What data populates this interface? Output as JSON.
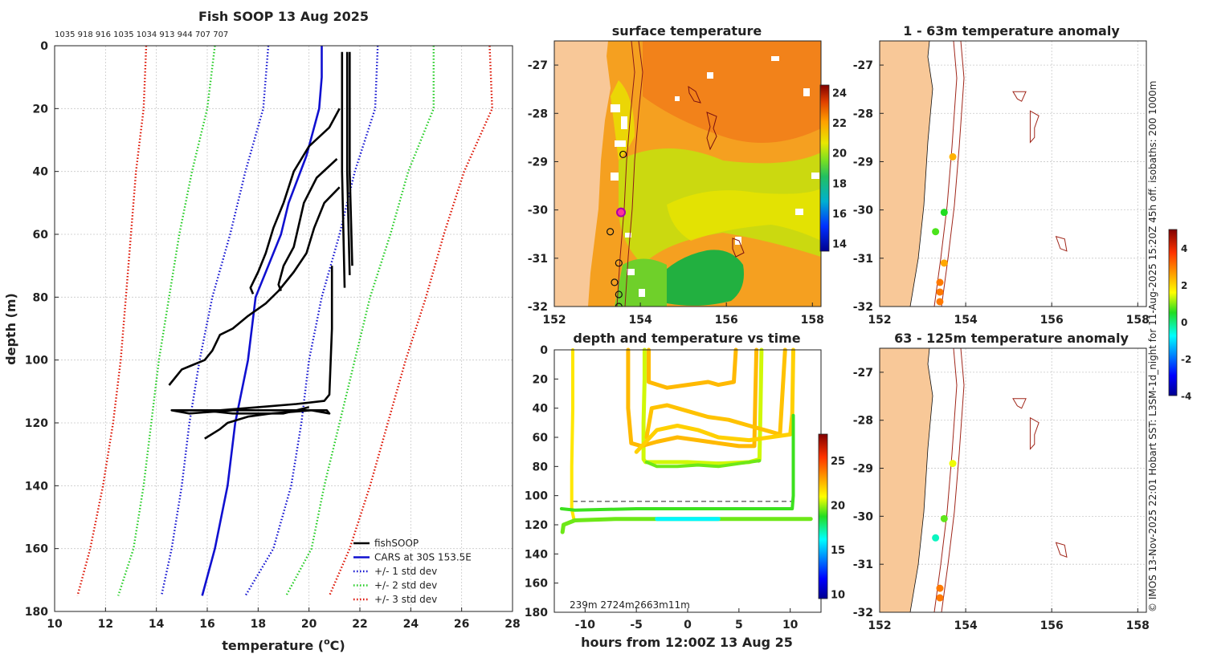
{
  "chart_data": [
    {
      "type": "line",
      "title": "Fish SOOP 13 Aug 2025",
      "top_annotation": "1035 918 916 1035 1034 913 944 707 707",
      "xlabel": "temperature (",
      "xlabel_sup": "o",
      "xlabel_unit": "C)",
      "ylabel": "depth (m)",
      "xlim": [
        10,
        28
      ],
      "ylim": [
        180,
        0
      ],
      "xticks": [
        10,
        12,
        14,
        16,
        18,
        20,
        22,
        24,
        26,
        28
      ],
      "yticks": [
        0,
        20,
        40,
        60,
        80,
        100,
        120,
        140,
        160,
        180
      ],
      "legend": [
        {
          "label": "fishSOOP",
          "color": "#000000",
          "style": "solid"
        },
        {
          "label": "CARS at 30S 153.5E",
          "color": "#1010d0",
          "style": "solid"
        },
        {
          "label": "+/- 1 std dev",
          "color": "#1010d0",
          "style": "dotted"
        },
        {
          "label": "+/- 2 std dev",
          "color": "#22cc22",
          "style": "dotted"
        },
        {
          "label": "+/- 3 std dev",
          "color": "#dd1100",
          "style": "dotted"
        }
      ],
      "series": [
        {
          "name": "CARS",
          "color": "#1010d0",
          "style": "solid",
          "points": [
            [
              20.5,
              0
            ],
            [
              20.5,
              10
            ],
            [
              20.4,
              20
            ],
            [
              19.9,
              35
            ],
            [
              19.2,
              50
            ],
            [
              18.9,
              60
            ],
            [
              18.4,
              70
            ],
            [
              17.9,
              80
            ],
            [
              17.6,
              100
            ],
            [
              17.1,
              120
            ],
            [
              16.8,
              140
            ],
            [
              16.3,
              160
            ],
            [
              15.8,
              175
            ]
          ]
        },
        {
          "name": "-1 std",
          "color": "#1010d0",
          "style": "dotted",
          "points": [
            [
              18.4,
              0
            ],
            [
              18.2,
              20
            ],
            [
              17.5,
              40
            ],
            [
              16.9,
              60
            ],
            [
              16.2,
              80
            ],
            [
              15.7,
              100
            ],
            [
              15.5,
              110
            ],
            [
              15.3,
              120
            ],
            [
              15.0,
              140
            ],
            [
              14.6,
              160
            ],
            [
              14.2,
              175
            ]
          ]
        },
        {
          "name": "+1 std",
          "color": "#1010d0",
          "style": "dotted",
          "points": [
            [
              22.7,
              0
            ],
            [
              22.6,
              20
            ],
            [
              21.8,
              40
            ],
            [
              21.2,
              60
            ],
            [
              20.5,
              80
            ],
            [
              20.0,
              100
            ],
            [
              19.7,
              120
            ],
            [
              19.3,
              140
            ],
            [
              18.6,
              160
            ],
            [
              17.5,
              175
            ]
          ]
        },
        {
          "name": "-2 std",
          "color": "#22cc22",
          "style": "dotted",
          "points": [
            [
              16.3,
              0
            ],
            [
              16.0,
              20
            ],
            [
              15.4,
              40
            ],
            [
              14.9,
              60
            ],
            [
              14.5,
              80
            ],
            [
              14.1,
              100
            ],
            [
              13.8,
              120
            ],
            [
              13.5,
              140
            ],
            [
              13.1,
              160
            ],
            [
              12.5,
              175
            ]
          ]
        },
        {
          "name": "+2 std",
          "color": "#22cc22",
          "style": "dotted",
          "points": [
            [
              24.9,
              0
            ],
            [
              24.9,
              20
            ],
            [
              23.9,
              40
            ],
            [
              23.2,
              60
            ],
            [
              22.4,
              80
            ],
            [
              21.8,
              100
            ],
            [
              21.2,
              120
            ],
            [
              20.6,
              140
            ],
            [
              20.1,
              160
            ],
            [
              19.1,
              175
            ]
          ]
        },
        {
          "name": "-3 std",
          "color": "#dd1100",
          "style": "dotted",
          "points": [
            [
              13.6,
              0
            ],
            [
              13.5,
              20
            ],
            [
              13.2,
              40
            ],
            [
              13.0,
              60
            ],
            [
              12.8,
              80
            ],
            [
              12.6,
              100
            ],
            [
              12.3,
              120
            ],
            [
              11.9,
              140
            ],
            [
              11.4,
              160
            ],
            [
              10.9,
              175
            ]
          ]
        },
        {
          "name": "+3 std",
          "color": "#dd1100",
          "style": "dotted",
          "points": [
            [
              27.1,
              0
            ],
            [
              27.2,
              20
            ],
            [
              26.1,
              40
            ],
            [
              25.3,
              60
            ],
            [
              24.6,
              80
            ],
            [
              23.8,
              100
            ],
            [
              23.1,
              120
            ],
            [
              22.4,
              140
            ],
            [
              21.6,
              160
            ],
            [
              20.8,
              175
            ]
          ]
        },
        {
          "name": "fishSOOP-1",
          "color": "#000000",
          "style": "solid",
          "points": [
            [
              21.3,
              2
            ],
            [
              21.3,
              40
            ],
            [
              21.4,
              77
            ]
          ]
        },
        {
          "name": "fishSOOP-2",
          "color": "#000000",
          "style": "solid",
          "points": [
            [
              21.5,
              2
            ],
            [
              21.5,
              40
            ],
            [
              21.6,
              73
            ]
          ]
        },
        {
          "name": "fishSOOP-3",
          "color": "#000000",
          "style": "solid",
          "points": [
            [
              21.6,
              2
            ],
            [
              21.6,
              40
            ],
            [
              21.7,
              70
            ]
          ]
        },
        {
          "name": "fishSOOP-4",
          "color": "#000000",
          "style": "solid",
          "points": [
            [
              21.2,
              20
            ],
            [
              20.8,
              26
            ],
            [
              20.0,
              32
            ],
            [
              19.4,
              40
            ],
            [
              19.0,
              50
            ],
            [
              18.6,
              58
            ],
            [
              18.3,
              66
            ],
            [
              18.0,
              72
            ],
            [
              17.7,
              77
            ],
            [
              17.8,
              79
            ]
          ]
        },
        {
          "name": "fishSOOP-5",
          "color": "#000000",
          "style": "solid",
          "points": [
            [
              21.1,
              36
            ],
            [
              20.3,
              42
            ],
            [
              19.8,
              50
            ],
            [
              19.6,
              57
            ],
            [
              19.4,
              64
            ],
            [
              19.0,
              70
            ],
            [
              18.8,
              76
            ],
            [
              18.9,
              78
            ]
          ]
        },
        {
          "name": "fishSOOP-6",
          "color": "#000000",
          "style": "solid",
          "points": [
            [
              21.2,
              45
            ],
            [
              20.6,
              50
            ],
            [
              20.2,
              58
            ],
            [
              19.9,
              66
            ],
            [
              19.4,
              72
            ],
            [
              18.8,
              78
            ],
            [
              18.3,
              82
            ],
            [
              17.6,
              86
            ],
            [
              17.0,
              90
            ],
            [
              16.5,
              92
            ],
            [
              16.2,
              97
            ],
            [
              15.9,
              100
            ],
            [
              15.3,
              102
            ],
            [
              15.0,
              103
            ],
            [
              14.5,
              108
            ]
          ]
        },
        {
          "name": "fishSOOP-7",
          "color": "#000000",
          "style": "solid",
          "points": [
            [
              20.9,
              70
            ],
            [
              20.9,
              90
            ],
            [
              20.8,
              111
            ],
            [
              20.6,
              113
            ],
            [
              19.5,
              114
            ],
            [
              18.0,
              115
            ],
            [
              16.5,
              116
            ],
            [
              15.5,
              116
            ],
            [
              14.6,
              116
            ],
            [
              15.3,
              117
            ],
            [
              17.0,
              116
            ],
            [
              18.8,
              116
            ],
            [
              20.0,
              116
            ],
            [
              20.7,
              116
            ],
            [
              20.8,
              117
            ],
            [
              20.1,
              116
            ],
            [
              18.5,
              117
            ],
            [
              17.6,
              118
            ],
            [
              16.8,
              120
            ],
            [
              16.5,
              122
            ],
            [
              15.9,
              125
            ]
          ]
        },
        {
          "name": "fishSOOP-8",
          "color": "#000000",
          "style": "solid",
          "points": [
            [
              20.0,
              115
            ],
            [
              19.0,
              117
            ],
            [
              18.0,
              117
            ],
            [
              17.0,
              117
            ],
            [
              15.8,
              116
            ],
            [
              14.8,
              116
            ]
          ]
        }
      ]
    },
    {
      "type": "heatmap",
      "title": "surface temperature",
      "xlim": [
        152,
        158.2
      ],
      "ylim": [
        -32,
        -26.5
      ],
      "xticks": [
        152,
        154,
        156,
        158
      ],
      "yticks": [
        -27,
        -28,
        -29,
        -30,
        -31,
        -32
      ],
      "colorbar": {
        "min": 13.5,
        "max": 24.5,
        "ticks": [
          14,
          16,
          18,
          20,
          22,
          24
        ]
      },
      "circle_markers": [
        [
          153.6,
          -28.85
        ],
        [
          153.3,
          -30.45
        ],
        [
          153.5,
          -31.1
        ],
        [
          153.4,
          -31.5
        ],
        [
          153.5,
          -31.75
        ],
        [
          153.5,
          -32.0
        ]
      ],
      "highlight_marker": [
        153.55,
        -30.05
      ]
    },
    {
      "type": "scatter",
      "title": "1 - 63m temperature anomaly",
      "xlim": [
        152,
        158.2
      ],
      "ylim": [
        -32,
        -26.5
      ],
      "xticks": [
        152,
        154,
        156,
        158
      ],
      "yticks": [
        -27,
        -28,
        -29,
        -30,
        -31,
        -32
      ],
      "points": [
        {
          "lon": 153.7,
          "lat": -28.9,
          "anomaly": 2.4
        },
        {
          "lon": 153.5,
          "lat": -30.05,
          "anomaly": 0.5
        },
        {
          "lon": 153.3,
          "lat": -30.45,
          "anomaly": 0.7
        },
        {
          "lon": 153.5,
          "lat": -31.1,
          "anomaly": 2.5
        },
        {
          "lon": 153.4,
          "lat": -31.5,
          "anomaly": 3.0
        },
        {
          "lon": 153.4,
          "lat": -31.7,
          "anomaly": 3.0
        },
        {
          "lon": 153.4,
          "lat": -31.9,
          "anomaly": 3.0
        }
      ],
      "colorbar": {
        "min": -4,
        "max": 5,
        "ticks": [
          4,
          2,
          0,
          -2,
          -4
        ]
      }
    },
    {
      "type": "scatter",
      "title": "63 - 125m temperature anomaly",
      "xlim": [
        152,
        158.2
      ],
      "ylim": [
        -32,
        -26.5
      ],
      "xticks": [
        152,
        154,
        156,
        158
      ],
      "yticks": [
        -27,
        -28,
        -29,
        -30,
        -31,
        -32
      ],
      "points": [
        {
          "lon": 153.7,
          "lat": -28.9,
          "anomaly": 1.5
        },
        {
          "lon": 153.5,
          "lat": -30.05,
          "anomaly": 0.8
        },
        {
          "lon": 153.3,
          "lat": -30.45,
          "anomaly": -0.4
        },
        {
          "lon": 153.4,
          "lat": -31.5,
          "anomaly": 3.0
        },
        {
          "lon": 153.4,
          "lat": -31.7,
          "anomaly": 3.0
        }
      ]
    },
    {
      "type": "scatter",
      "title": "depth and temperature vs time",
      "xlabel": "hours from 12:00Z 13 Aug 25",
      "xlim": [
        -13,
        13
      ],
      "ylim": [
        180,
        0
      ],
      "xticks": [
        -10,
        -5,
        0,
        5,
        10
      ],
      "yticks": [
        0,
        20,
        40,
        60,
        80,
        100,
        120,
        140,
        160,
        180
      ],
      "bottom_annotation": "239m  2724m2663m11m",
      "colorbar": {
        "min": 9.5,
        "max": 28,
        "ticks": [
          25,
          20,
          15,
          10
        ]
      },
      "dashed_depths": [
        {
          "depth": 104,
          "from": -11.2,
          "to": 10.2
        },
        {
          "depth": 77,
          "from": -4.2,
          "to": 7
        }
      ]
    }
  ],
  "side_caption": "© IMOS 13-Nov-2025 22:01 Hobart SST: L3SM-1d_night for 11-Aug-2025 15:20Z 45h off. isobaths: 200  1000m"
}
